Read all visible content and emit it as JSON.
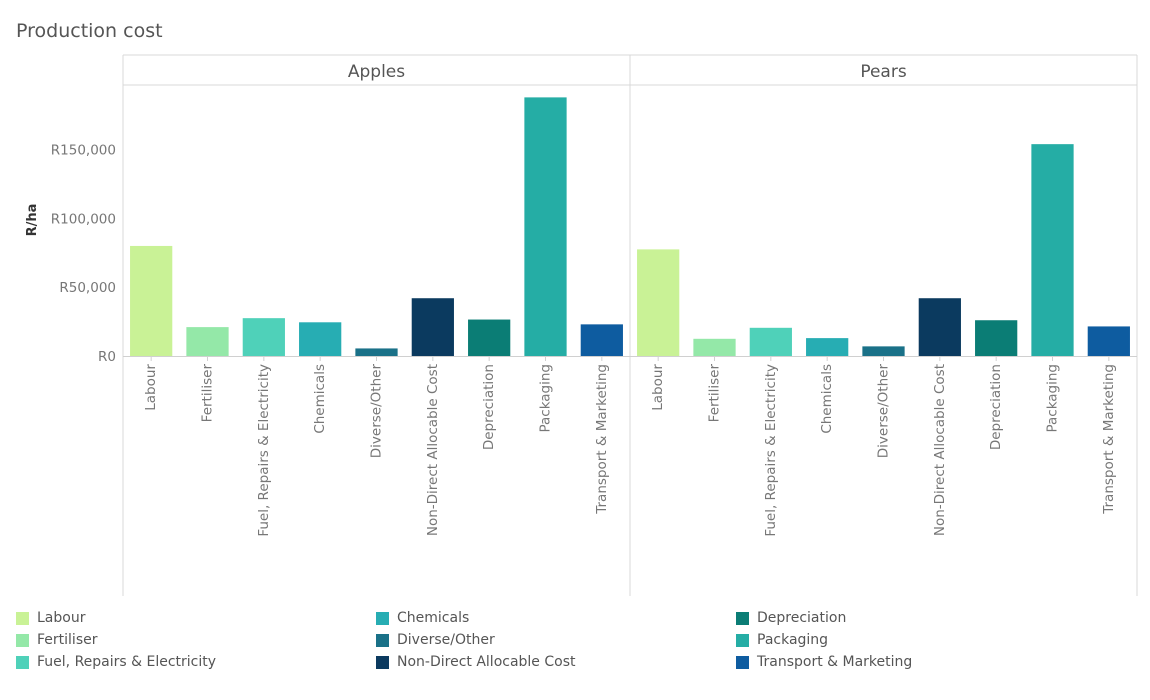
{
  "title": "Production cost",
  "chart_data": {
    "type": "bar",
    "title": "Production cost",
    "ylabel": "R/ha",
    "xlabel": "",
    "ylim": [
      0,
      197000
    ],
    "yticks": [
      0,
      50000,
      100000,
      150000
    ],
    "ytick_labels": [
      "R0",
      "R50,000",
      "R100,000",
      "R150,000"
    ],
    "categories": [
      "Labour",
      "Fertiliser",
      "Fuel, Repairs & Electricity",
      "Chemicals",
      "Diverse/Other",
      "Non-Direct Allocable Cost",
      "Depreciation",
      "Packaging",
      "Transport & Marketing"
    ],
    "colors": [
      "#c9f296",
      "#94e8a8",
      "#4fd1b9",
      "#27adb3",
      "#1a7188",
      "#0b3a5f",
      "#0b7d75",
      "#25ada5",
      "#0e5ca0"
    ],
    "panels": [
      {
        "name": "Apples",
        "values": [
          80000,
          21000,
          27500,
          24500,
          5500,
          42000,
          26500,
          188000,
          23000
        ]
      },
      {
        "name": "Pears",
        "values": [
          77500,
          12500,
          20500,
          13000,
          7000,
          42000,
          26000,
          154000,
          21500
        ]
      }
    ],
    "legend_position": "bottom"
  },
  "legend": [
    {
      "label": "Labour",
      "color": "#c9f296"
    },
    {
      "label": "Fertiliser",
      "color": "#94e8a8"
    },
    {
      "label": "Fuel, Repairs & Electricity",
      "color": "#4fd1b9"
    },
    {
      "label": "Chemicals",
      "color": "#27adb3"
    },
    {
      "label": "Diverse/Other",
      "color": "#1a7188"
    },
    {
      "label": "Non-Direct Allocable Cost",
      "color": "#0b3a5f"
    },
    {
      "label": "Depreciation",
      "color": "#0b7d75"
    },
    {
      "label": "Packaging",
      "color": "#25ada5"
    },
    {
      "label": "Transport & Marketing",
      "color": "#0e5ca0"
    }
  ]
}
